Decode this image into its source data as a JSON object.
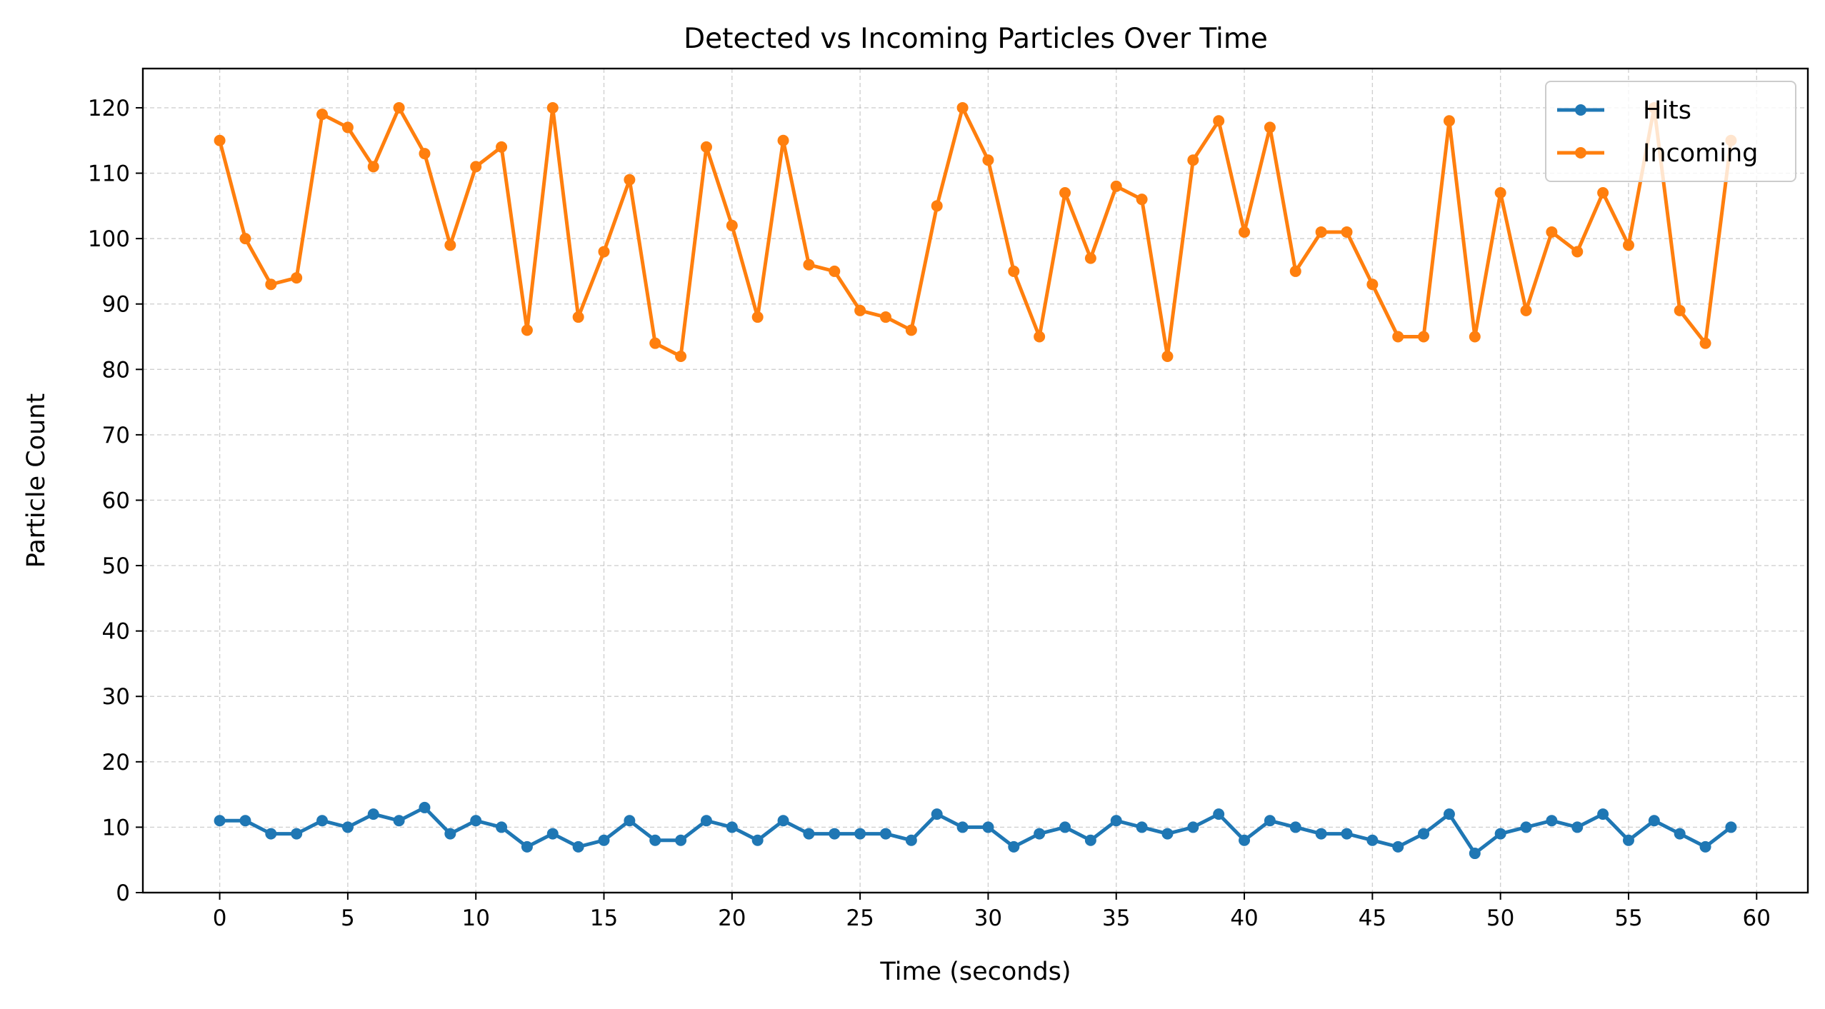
{
  "chart_data": {
    "type": "line",
    "title": "Detected vs Incoming Particles Over Time",
    "xlabel": "Time (seconds)",
    "ylabel": "Particle Count",
    "xlim": [
      -3,
      62
    ],
    "ylim": [
      0,
      126
    ],
    "xticks": [
      0,
      5,
      10,
      15,
      20,
      25,
      30,
      35,
      40,
      45,
      50,
      55,
      60
    ],
    "yticks": [
      0,
      10,
      20,
      30,
      40,
      50,
      60,
      70,
      80,
      90,
      100,
      110,
      120
    ],
    "grid": true,
    "legend_position": "top-right",
    "x": [
      0,
      1,
      2,
      3,
      4,
      5,
      6,
      7,
      8,
      9,
      10,
      11,
      12,
      13,
      14,
      15,
      16,
      17,
      18,
      19,
      20,
      21,
      22,
      23,
      24,
      25,
      26,
      27,
      28,
      29,
      30,
      31,
      32,
      33,
      34,
      35,
      36,
      37,
      38,
      39,
      40,
      41,
      42,
      43,
      44,
      45,
      46,
      47,
      48,
      49,
      50,
      51,
      52,
      53,
      54,
      55,
      56,
      57,
      58,
      59
    ],
    "series": [
      {
        "name": "Hits",
        "color": "#1f77b4",
        "values": [
          11,
          11,
          9,
          9,
          11,
          10,
          12,
          11,
          13,
          9,
          11,
          10,
          7,
          9,
          7,
          8,
          11,
          8,
          8,
          11,
          10,
          8,
          11,
          9,
          9,
          9,
          9,
          8,
          12,
          10,
          10,
          7,
          9,
          10,
          8,
          11,
          10,
          9,
          10,
          12,
          8,
          11,
          10,
          9,
          9,
          8,
          7,
          9,
          12,
          6,
          9,
          10,
          11,
          10,
          12,
          8,
          11,
          9,
          7,
          10
        ]
      },
      {
        "name": "Incoming",
        "color": "#ff7f0e",
        "values": [
          115,
          100,
          93,
          94,
          119,
          117,
          111,
          120,
          113,
          99,
          111,
          114,
          86,
          120,
          88,
          98,
          109,
          84,
          82,
          114,
          102,
          88,
          115,
          96,
          95,
          89,
          88,
          86,
          105,
          120,
          112,
          95,
          85,
          107,
          97,
          108,
          106,
          82,
          112,
          118,
          101,
          117,
          95,
          101,
          101,
          93,
          85,
          85,
          118,
          85,
          107,
          89,
          101,
          98,
          107,
          99,
          120,
          89,
          84,
          115
        ]
      }
    ]
  }
}
